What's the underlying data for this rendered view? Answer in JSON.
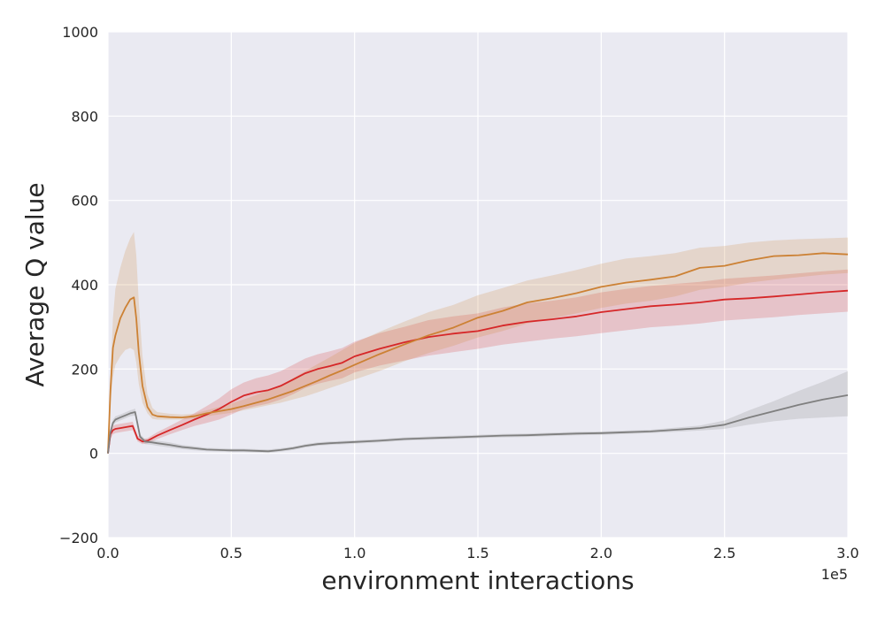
{
  "chart_data": {
    "type": "line",
    "title": "",
    "xlabel": "environment interactions",
    "ylabel": "Average Q value",
    "x_scale_label": "1e5",
    "xlim": [
      0,
      3.0
    ],
    "ylim": [
      -200,
      1000
    ],
    "x_ticks": [
      0.0,
      0.5,
      1.0,
      1.5,
      2.0,
      2.5,
      3.0
    ],
    "x_tick_labels": [
      "0.0",
      "0.5",
      "1.0",
      "1.5",
      "2.0",
      "2.5",
      "3.0"
    ],
    "y_ticks": [
      -200,
      0,
      200,
      400,
      600,
      800,
      1000
    ],
    "y_tick_labels": [
      "−200",
      "0",
      "200",
      "400",
      "600",
      "800",
      "1000"
    ],
    "grid": true,
    "legend": "none",
    "background_color": "#eaeaf2",
    "series": [
      {
        "color": "#d62728",
        "x": [
          0,
          0.01,
          0.02,
          0.03,
          0.05,
          0.08,
          0.1,
          0.11,
          0.12,
          0.14,
          0.16,
          0.2,
          0.25,
          0.3,
          0.35,
          0.4,
          0.45,
          0.5,
          0.55,
          0.6,
          0.65,
          0.7,
          0.75,
          0.8,
          0.85,
          0.9,
          0.95,
          1.0,
          1.1,
          1.2,
          1.3,
          1.4,
          1.5,
          1.6,
          1.7,
          1.8,
          1.9,
          2.0,
          2.1,
          2.2,
          2.3,
          2.4,
          2.5,
          2.6,
          2.7,
          2.8,
          2.9,
          3.0
        ],
        "y": [
          0,
          45,
          55,
          58,
          60,
          63,
          65,
          50,
          35,
          28,
          30,
          42,
          55,
          67,
          80,
          92,
          105,
          122,
          137,
          145,
          150,
          160,
          175,
          190,
          200,
          207,
          215,
          230,
          248,
          263,
          276,
          284,
          290,
          303,
          312,
          318,
          325,
          335,
          342,
          349,
          353,
          358,
          365,
          368,
          372,
          377,
          382,
          386
        ],
        "band_low": [
          0,
          35,
          45,
          48,
          50,
          53,
          55,
          42,
          28,
          22,
          24,
          34,
          45,
          55,
          65,
          72,
          80,
          92,
          105,
          112,
          118,
          128,
          140,
          155,
          165,
          172,
          178,
          192,
          208,
          220,
          232,
          240,
          248,
          258,
          265,
          272,
          278,
          285,
          292,
          299,
          303,
          308,
          315,
          319,
          323,
          328,
          332,
          336
        ],
        "band_high": [
          0,
          55,
          65,
          68,
          70,
          73,
          75,
          58,
          42,
          34,
          36,
          50,
          65,
          80,
          95,
          112,
          130,
          152,
          168,
          178,
          185,
          195,
          210,
          225,
          235,
          242,
          250,
          265,
          285,
          300,
          316,
          325,
          332,
          346,
          356,
          362,
          370,
          382,
          390,
          397,
          402,
          407,
          414,
          418,
          422,
          427,
          432,
          436
        ]
      },
      {
        "color": "#cc8134",
        "x": [
          0,
          0.01,
          0.02,
          0.03,
          0.05,
          0.07,
          0.09,
          0.105,
          0.115,
          0.125,
          0.14,
          0.16,
          0.18,
          0.2,
          0.25,
          0.3,
          0.35,
          0.4,
          0.45,
          0.5,
          0.55,
          0.6,
          0.65,
          0.7,
          0.75,
          0.8,
          0.85,
          0.9,
          0.95,
          1.0,
          1.1,
          1.2,
          1.3,
          1.4,
          1.5,
          1.6,
          1.7,
          1.8,
          1.9,
          2.0,
          2.1,
          2.2,
          2.3,
          2.4,
          2.5,
          2.6,
          2.7,
          2.8,
          2.9,
          3.0
        ],
        "y": [
          0,
          150,
          250,
          280,
          320,
          345,
          365,
          370,
          320,
          240,
          160,
          110,
          92,
          88,
          86,
          85,
          88,
          95,
          100,
          105,
          112,
          120,
          128,
          138,
          148,
          160,
          172,
          185,
          197,
          210,
          235,
          258,
          280,
          298,
          322,
          338,
          358,
          368,
          380,
          395,
          405,
          412,
          420,
          440,
          445,
          458,
          468,
          470,
          475,
          472
        ],
        "band_low": [
          0,
          120,
          180,
          210,
          230,
          245,
          250,
          245,
          215,
          165,
          120,
          95,
          82,
          80,
          80,
          80,
          83,
          88,
          92,
          96,
          102,
          108,
          114,
          120,
          128,
          135,
          145,
          155,
          165,
          175,
          195,
          218,
          238,
          255,
          275,
          290,
          308,
          320,
          332,
          345,
          355,
          362,
          372,
          388,
          395,
          405,
          412,
          418,
          424,
          428
        ],
        "band_high": [
          0,
          180,
          320,
          390,
          440,
          480,
          510,
          525,
          470,
          360,
          230,
          140,
          108,
          98,
          94,
          92,
          94,
          102,
          110,
          118,
          128,
          138,
          150,
          162,
          178,
          195,
          212,
          228,
          245,
          262,
          288,
          312,
          335,
          352,
          375,
          392,
          410,
          422,
          435,
          450,
          462,
          468,
          475,
          488,
          492,
          500,
          505,
          508,
          510,
          512
        ]
      },
      {
        "color": "#7f7f7f",
        "x": [
          0,
          0.01,
          0.02,
          0.03,
          0.05,
          0.07,
          0.09,
          0.11,
          0.12,
          0.13,
          0.15,
          0.18,
          0.2,
          0.25,
          0.3,
          0.35,
          0.4,
          0.45,
          0.5,
          0.55,
          0.6,
          0.65,
          0.7,
          0.75,
          0.8,
          0.85,
          0.9,
          1.0,
          1.1,
          1.2,
          1.3,
          1.4,
          1.5,
          1.6,
          1.7,
          1.8,
          1.9,
          2.0,
          2.1,
          2.2,
          2.3,
          2.4,
          2.5,
          2.6,
          2.7,
          2.8,
          2.9,
          3.0
        ],
        "y": [
          0,
          50,
          72,
          80,
          85,
          90,
          95,
          98,
          70,
          40,
          28,
          26,
          24,
          20,
          15,
          12,
          9,
          8,
          7,
          7,
          6,
          5,
          8,
          12,
          18,
          22,
          24,
          27,
          30,
          34,
          36,
          38,
          40,
          42,
          43,
          45,
          47,
          48,
          50,
          52,
          56,
          60,
          68,
          85,
          100,
          115,
          128,
          138
        ],
        "band_low": [
          0,
          45,
          65,
          73,
          78,
          83,
          88,
          90,
          63,
          34,
          22,
          20,
          18,
          14,
          10,
          7,
          5,
          4,
          3,
          3,
          2,
          1,
          4,
          8,
          14,
          18,
          20,
          23,
          26,
          30,
          32,
          34,
          36,
          38,
          39,
          41,
          43,
          44,
          46,
          48,
          51,
          54,
          58,
          68,
          76,
          82,
          85,
          88
        ],
        "band_high": [
          0,
          55,
          80,
          88,
          92,
          97,
          102,
          106,
          77,
          46,
          34,
          32,
          30,
          26,
          20,
          17,
          13,
          12,
          11,
          11,
          10,
          9,
          12,
          16,
          22,
          26,
          28,
          31,
          34,
          38,
          40,
          42,
          44,
          46,
          47,
          49,
          51,
          52,
          54,
          56,
          61,
          66,
          78,
          102,
          124,
          148,
          170,
          195
        ]
      }
    ]
  }
}
